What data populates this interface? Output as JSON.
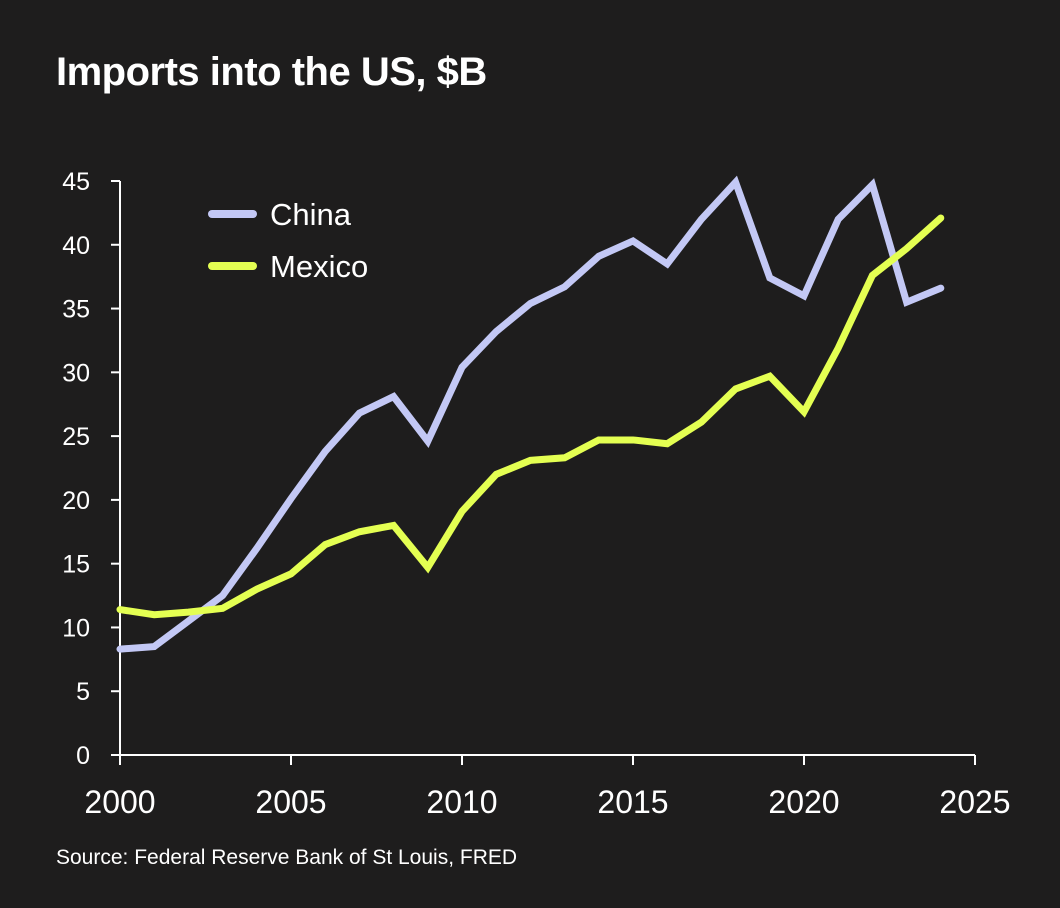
{
  "chart_data": {
    "type": "line",
    "title": "Imports into the US, $B",
    "source": "Source: Federal Reserve Bank of St Louis, FRED",
    "xlabel": "",
    "ylabel": "",
    "xlim": [
      2000,
      2025
    ],
    "ylim": [
      0,
      45
    ],
    "x_ticks": [
      2000,
      2005,
      2010,
      2015,
      2020,
      2025
    ],
    "y_ticks": [
      0,
      5,
      10,
      15,
      20,
      25,
      30,
      35,
      40,
      45
    ],
    "grid": false,
    "legend_position": "top-left",
    "x": [
      2000,
      2001,
      2002,
      2003,
      2004,
      2005,
      2006,
      2007,
      2008,
      2009,
      2010,
      2011,
      2012,
      2013,
      2014,
      2015,
      2016,
      2017,
      2018,
      2019,
      2020,
      2021,
      2022,
      2023,
      2024
    ],
    "series": [
      {
        "name": "China",
        "color": "#c3c8f5",
        "values": [
          8.3,
          8.5,
          10.5,
          12.5,
          16.2,
          20.1,
          23.8,
          26.8,
          28.1,
          24.6,
          30.4,
          33.2,
          35.4,
          36.7,
          39.1,
          40.3,
          38.5,
          42.0,
          44.9,
          37.4,
          36.0,
          42.0,
          44.7,
          35.5,
          36.6
        ]
      },
      {
        "name": "Mexico",
        "color": "#e4ff52",
        "values": [
          11.4,
          11.0,
          11.2,
          11.5,
          13.0,
          14.2,
          16.5,
          17.5,
          18.0,
          14.7,
          19.1,
          22.0,
          23.1,
          23.3,
          24.7,
          24.7,
          24.4,
          26.1,
          28.7,
          29.7,
          26.9,
          31.9,
          37.6,
          39.7,
          42.1
        ]
      }
    ]
  }
}
